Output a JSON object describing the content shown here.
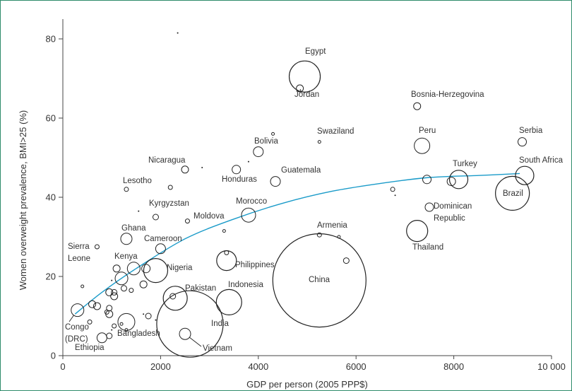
{
  "chart_data": {
    "type": "scatter",
    "xlabel": "GDP per person (2005 PPP$)",
    "ylabel": "Women overweight prevalence, BMI>25 (%)",
    "xlim": [
      0,
      10000
    ],
    "ylim": [
      0,
      85
    ],
    "xticks": [
      "0",
      "2000",
      "4000",
      "6000",
      "8000",
      "10 000"
    ],
    "xtick_values": [
      0,
      2000,
      4000,
      6000,
      8000,
      10000
    ],
    "yticks": [
      "0",
      "20",
      "40",
      "60",
      "80"
    ],
    "ytick_values": [
      0,
      20,
      40,
      60,
      80
    ],
    "grid": false,
    "bubble_size": "population",
    "colors": {
      "markers": "#222222",
      "fit_line": "#1a9bc9",
      "frame": "#2e8b6a",
      "text": "#333333"
    },
    "named_points": [
      {
        "name": "Egypt",
        "x": 4950,
        "y": 70.5,
        "size": 22
      },
      {
        "name": "Jordan",
        "x": 4850,
        "y": 67.5,
        "size": 5
      },
      {
        "name": "Bosnia-Herzegovina",
        "x": 7250,
        "y": 63,
        "size": 5
      },
      {
        "name": "Serbia",
        "x": 9400,
        "y": 54,
        "size": 6
      },
      {
        "name": "Peru",
        "x": 7350,
        "y": 53,
        "size": 11
      },
      {
        "name": "Swaziland",
        "x": 5250,
        "y": 54,
        "size": 2
      },
      {
        "name": "Bolivia",
        "x": 4000,
        "y": 51.5,
        "size": 7
      },
      {
        "name": "Nicaragua",
        "x": 2500,
        "y": 47,
        "size": 5
      },
      {
        "name": "Honduras",
        "x": 3550,
        "y": 47,
        "size": 6
      },
      {
        "name": "Guatemala",
        "x": 4350,
        "y": 44,
        "size": 7
      },
      {
        "name": "Turkey",
        "x": 8100,
        "y": 44.5,
        "size": 13
      },
      {
        "name": "South Africa",
        "x": 9450,
        "y": 45.5,
        "size": 13
      },
      {
        "name": "Brazil",
        "x": 9200,
        "y": 41,
        "size": 24
      },
      {
        "name": "Lesotho",
        "x": 1300,
        "y": 42,
        "size": 3
      },
      {
        "name": "Kyrgyzstan",
        "x": 1900,
        "y": 35,
        "size": 4
      },
      {
        "name": "Moldova",
        "x": 2550,
        "y": 34,
        "size": 3
      },
      {
        "name": "Morocco",
        "x": 3800,
        "y": 35.5,
        "size": 10
      },
      {
        "name": "Dominican Republic",
        "x": 7500,
        "y": 37.5,
        "size": 6
      },
      {
        "name": "Ghana",
        "x": 1300,
        "y": 29.5,
        "size": 8
      },
      {
        "name": "Cameroon",
        "x": 2000,
        "y": 27,
        "size": 7
      },
      {
        "name": "Armenia",
        "x": 5250,
        "y": 30.5,
        "size": 3
      },
      {
        "name": "Thailand",
        "x": 7250,
        "y": 31.5,
        "size": 15
      },
      {
        "name": "Sierra Leone",
        "x": 700,
        "y": 27.5,
        "size": 3
      },
      {
        "name": "Philippines",
        "x": 3350,
        "y": 24,
        "size": 14
      },
      {
        "name": "Kenya",
        "x": 1450,
        "y": 22,
        "size": 9
      },
      {
        "name": "Nigeria",
        "x": 1900,
        "y": 21.5,
        "size": 17
      },
      {
        "name": "China",
        "x": 5250,
        "y": 19,
        "size": 66
      },
      {
        "name": "Pakistan",
        "x": 2300,
        "y": 14.5,
        "size": 17
      },
      {
        "name": "Indonesia",
        "x": 3400,
        "y": 13.5,
        "size": 18
      },
      {
        "name": "Congo (DRC)",
        "x": 300,
        "y": 11.5,
        "size": 9
      },
      {
        "name": "Bangladesh",
        "x": 1300,
        "y": 8.5,
        "size": 12
      },
      {
        "name": "India",
        "x": 2600,
        "y": 8,
        "size": 47
      },
      {
        "name": "Ethiopia",
        "x": 800,
        "y": 4.5,
        "size": 7
      },
      {
        "name": "Vietnam",
        "x": 2500,
        "y": 5.5,
        "size": 8
      }
    ],
    "unlabeled_points": [
      {
        "x": 4300,
        "y": 56,
        "size": 2
      },
      {
        "x": 3800,
        "y": 49,
        "size": 1
      },
      {
        "x": 2850,
        "y": 47.5,
        "size": 1
      },
      {
        "x": 2200,
        "y": 42.5,
        "size": 3
      },
      {
        "x": 1550,
        "y": 36.5,
        "size": 1
      },
      {
        "x": 3300,
        "y": 31.5,
        "size": 2
      },
      {
        "x": 6750,
        "y": 42,
        "size": 3
      },
      {
        "x": 6800,
        "y": 40.5,
        "size": 1
      },
      {
        "x": 7450,
        "y": 44.5,
        "size": 6
      },
      {
        "x": 7950,
        "y": 44,
        "size": 6
      },
      {
        "x": 5650,
        "y": 30,
        "size": 2
      },
      {
        "x": 5800,
        "y": 24,
        "size": 4
      },
      {
        "x": 3350,
        "y": 26,
        "size": 3
      },
      {
        "x": 1100,
        "y": 22,
        "size": 5
      },
      {
        "x": 1200,
        "y": 19.5,
        "size": 9
      },
      {
        "x": 1700,
        "y": 22,
        "size": 6
      },
      {
        "x": 1050,
        "y": 16,
        "size": 4
      },
      {
        "x": 950,
        "y": 16,
        "size": 5
      },
      {
        "x": 1250,
        "y": 17,
        "size": 4
      },
      {
        "x": 1400,
        "y": 16.5,
        "size": 3
      },
      {
        "x": 1050,
        "y": 15,
        "size": 5
      },
      {
        "x": 1650,
        "y": 18,
        "size": 5
      },
      {
        "x": 2250,
        "y": 15,
        "size": 4
      },
      {
        "x": 600,
        "y": 13,
        "size": 5
      },
      {
        "x": 700,
        "y": 12.5,
        "size": 5
      },
      {
        "x": 950,
        "y": 12,
        "size": 4
      },
      {
        "x": 900,
        "y": 11,
        "size": 3
      },
      {
        "x": 950,
        "y": 10.5,
        "size": 5
      },
      {
        "x": 550,
        "y": 8.5,
        "size": 3
      },
      {
        "x": 1050,
        "y": 7.5,
        "size": 3
      },
      {
        "x": 1200,
        "y": 8,
        "size": 2
      },
      {
        "x": 1750,
        "y": 10,
        "size": 4
      },
      {
        "x": 1650,
        "y": 10.5,
        "size": 1
      },
      {
        "x": 1900,
        "y": 9,
        "size": 1
      },
      {
        "x": 950,
        "y": 5,
        "size": 4
      },
      {
        "x": 1000,
        "y": 6.5,
        "size": 1
      },
      {
        "x": 1300,
        "y": 6.5,
        "size": 2
      },
      {
        "x": 400,
        "y": 17.5,
        "size": 2
      },
      {
        "x": 1000,
        "y": 19,
        "size": 1
      },
      {
        "x": 2350,
        "y": 81.5,
        "size": 1
      }
    ],
    "fit_line": {
      "x": [
        250,
        800,
        1500,
        2500,
        3500,
        4500,
        5500,
        6500,
        7500,
        8500,
        9350
      ],
      "y": [
        10.5,
        16,
        22,
        29.5,
        34.5,
        38.5,
        41.5,
        43.5,
        45,
        45.5,
        46
      ]
    }
  },
  "labels": {
    "Egypt": "Egypt",
    "Jordan": "Jordan",
    "Bosnia": "Bosnia-Herzegovina",
    "Serbia": "Serbia",
    "Peru": "Peru",
    "Swaziland": "Swaziland",
    "Bolivia": "Bolivia",
    "Nicaragua": "Nicaragua",
    "Honduras": "Honduras",
    "Guatemala": "Guatemala",
    "Turkey": "Turkey",
    "SouthAfrica": "South Africa",
    "Brazil": "Brazil",
    "Lesotho": "Lesotho",
    "Kyrgyzstan": "Kyrgyzstan",
    "Moldova": "Moldova",
    "Morocco": "Morocco",
    "Dominican": "Dominican",
    "Republic": "Republic",
    "Ghana": "Ghana",
    "Cameroon": "Cameroon",
    "Armenia": "Armenia",
    "Thailand": "Thailand",
    "Sierra": "Sierra",
    "Leone": "Leone",
    "Philippines": "Philippines",
    "Kenya": "Kenya",
    "Nigeria": "Nigeria",
    "China": "China",
    "Pakistan": "Pakistan",
    "Indonesia": "Indonesia",
    "Congo": "Congo",
    "DRC": "(DRC)",
    "Bangladesh": "Bangladesh",
    "India": "India",
    "Ethiopia": "Ethiopia",
    "Vietnam": "Vietnam"
  }
}
